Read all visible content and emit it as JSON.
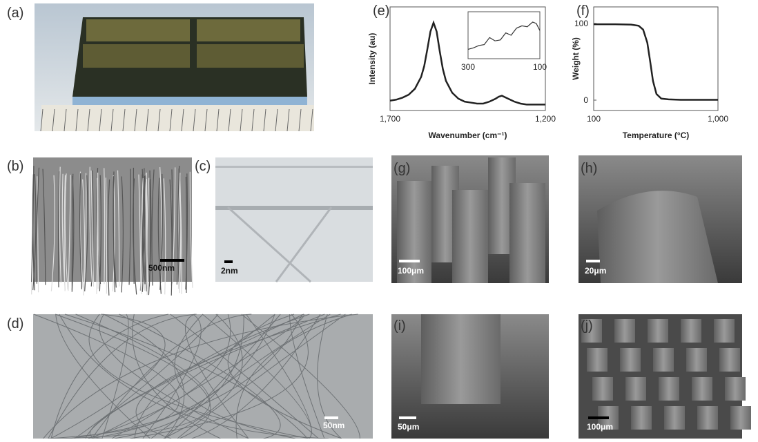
{
  "panels": [
    {
      "label": "(a)"
    },
    {
      "label": "(b)",
      "scale_bar": "500nm"
    },
    {
      "label": "(c)",
      "scale_bar": "2nm"
    },
    {
      "label": "(d)",
      "scale_bar": "50nm"
    },
    {
      "label": "(g)",
      "scale_bar": "100μm"
    },
    {
      "label": "(h)",
      "scale_bar": "20μm"
    },
    {
      "label": "(i)",
      "scale_bar": "50μm"
    },
    {
      "label": "(j)",
      "scale_bar": "100μm"
    }
  ],
  "chart_data": [
    {
      "type": "line",
      "title": "(e)",
      "x_label": "Wavenumber (cm⁻¹)",
      "y_label": "Intensity (au)",
      "xlim": [
        1700,
        1200
      ],
      "xticks": [
        {
          "value": 1700,
          "label": "1,700"
        },
        {
          "value": 1200,
          "label": "1,200"
        }
      ],
      "ylim": [
        0,
        105
      ],
      "color": "#222222",
      "x": [
        1700,
        1680,
        1660,
        1640,
        1620,
        1600,
        1590,
        1580,
        1570,
        1560,
        1550,
        1540,
        1530,
        1520,
        1500,
        1480,
        1460,
        1440,
        1420,
        1400,
        1380,
        1360,
        1350,
        1340,
        1320,
        1300,
        1280,
        1260,
        1240,
        1220,
        1200
      ],
      "values": [
        10,
        11,
        13,
        16,
        22,
        34,
        45,
        62,
        80,
        89,
        80,
        60,
        42,
        30,
        18,
        12,
        9,
        8,
        7,
        7,
        9,
        12,
        14,
        15,
        12,
        9,
        7,
        6,
        6,
        6,
        6
      ]
    },
    {
      "type": "line",
      "xlim": [
        300,
        100
      ],
      "xticks": [
        300,
        100
      ],
      "ylim": [
        0,
        10
      ],
      "color": "#333333",
      "x": [
        300,
        285,
        270,
        255,
        240,
        225,
        210,
        195,
        180,
        165,
        150,
        135,
        120,
        110,
        100
      ],
      "values": [
        2,
        2.3,
        2.8,
        3,
        4.5,
        3.8,
        4,
        5.5,
        5,
        6.5,
        7,
        6.8,
        7.8,
        7.5,
        6
      ]
    },
    {
      "type": "line",
      "title": "(f)",
      "x_label": "Temperature (°C)",
      "y_label": "Weight (%)",
      "xlim": [
        100,
        1000
      ],
      "xscale": "log",
      "xticks": [
        100,
        {
          "value": 1000,
          "label": "1,000"
        }
      ],
      "ylim": [
        -13.5,
        121.6
      ],
      "yticks": [
        0,
        100
      ],
      "color": "#222222",
      "x": [
        100,
        150,
        200,
        230,
        250,
        270,
        285,
        300,
        320,
        350,
        400,
        500,
        700,
        1000
      ],
      "values": [
        99,
        99,
        98.5,
        97,
        92,
        75,
        50,
        25,
        8,
        2,
        1,
        0.5,
        0.5,
        0.5
      ]
    }
  ]
}
